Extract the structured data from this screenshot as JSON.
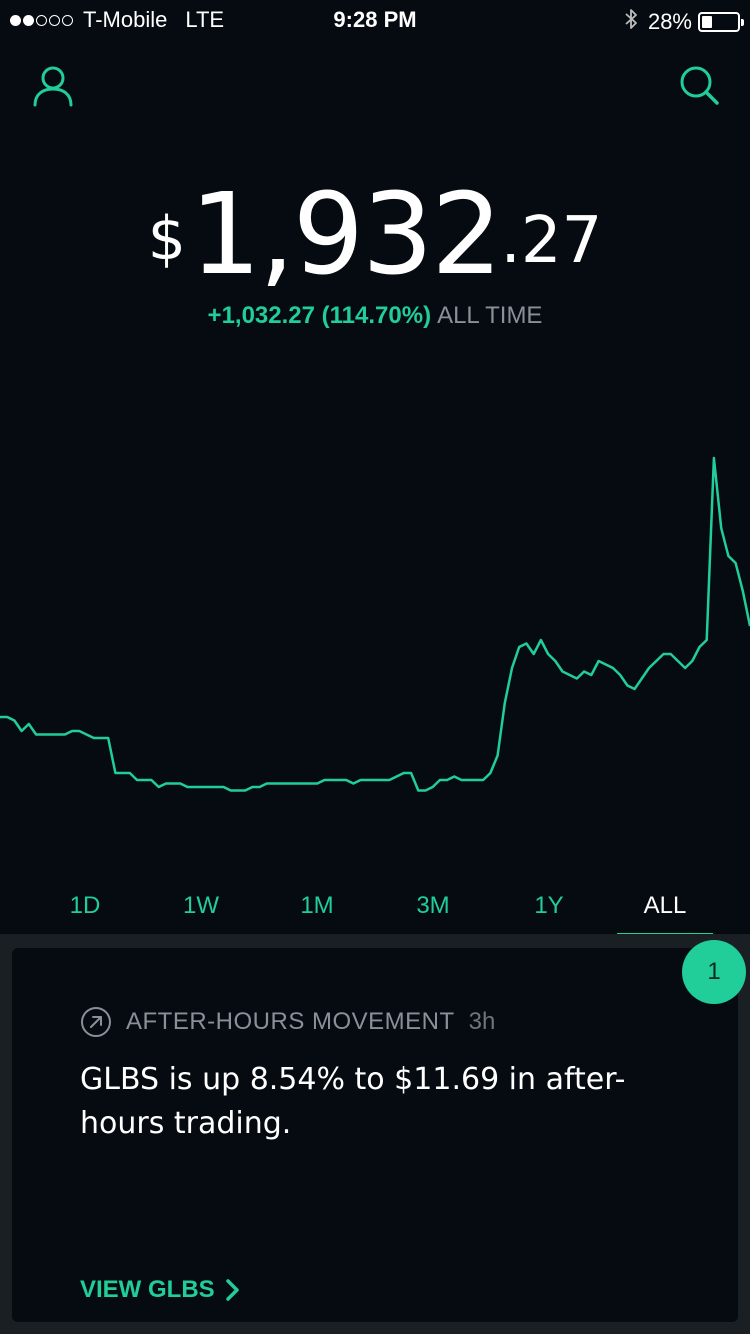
{
  "status_bar": {
    "carrier": "T-Mobile",
    "network": "LTE",
    "time": "9:28 PM",
    "battery_percent": "28%",
    "signal_bars_filled": 2,
    "signal_bars_total": 5,
    "battery_level": 0.28
  },
  "header": {
    "profile_icon": "user-icon",
    "search_icon": "search-icon"
  },
  "portfolio": {
    "currency_symbol": "$",
    "value_main": "1,932",
    "value_cents": ".27",
    "change_text": "+1,032.27 (114.70%)",
    "change_period": "ALL TIME"
  },
  "colors": {
    "accent": "#21ce99",
    "background": "#050b10",
    "card_gutter": "#1a1f24",
    "muted_text": "#8a9097"
  },
  "chart_data": {
    "type": "line",
    "title": "",
    "xlabel": "",
    "ylabel": "",
    "grid": false,
    "legend": "none",
    "ylim": [
      0,
      100
    ],
    "series": [
      {
        "values": [
          26,
          26,
          25,
          22,
          24,
          21,
          21,
          21,
          21,
          21,
          22,
          22,
          21,
          20,
          20,
          20,
          10,
          10,
          10,
          8,
          8,
          8,
          6,
          7,
          7,
          7,
          6,
          6,
          6,
          6,
          6,
          6,
          5,
          5,
          5,
          6,
          6,
          7,
          7,
          7,
          7,
          7,
          7,
          7,
          7,
          8,
          8,
          8,
          8,
          7,
          8,
          8,
          8,
          8,
          8,
          9,
          10,
          10,
          5,
          5,
          6,
          8,
          8,
          9,
          8,
          8,
          8,
          8,
          10,
          15,
          30,
          40,
          46,
          47,
          44,
          48,
          44,
          42,
          39,
          38,
          37,
          39,
          38,
          42,
          41,
          40,
          38,
          35,
          34,
          37,
          40,
          42,
          44,
          44,
          42,
          40,
          42,
          46,
          48,
          100,
          80,
          72,
          70,
          62,
          52
        ]
      }
    ]
  },
  "range_tabs": {
    "items": [
      {
        "label": "1D"
      },
      {
        "label": "1W"
      },
      {
        "label": "1M"
      },
      {
        "label": "3M"
      },
      {
        "label": "1Y"
      },
      {
        "label": "ALL"
      }
    ],
    "active": "ALL"
  },
  "card": {
    "icon": "trend-arrow-icon",
    "title": "AFTER-HOURS MOVEMENT",
    "age": "3h",
    "body": "GLBS is up 8.54% to $11.69 in after-hours trading.",
    "action_label": "VIEW GLBS",
    "action_icon": "chevron-right-icon"
  },
  "badge": {
    "count": "1"
  }
}
